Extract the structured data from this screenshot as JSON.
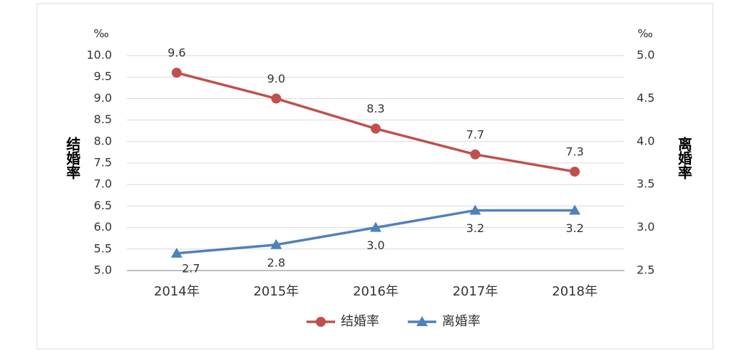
{
  "chart_data": {
    "type": "line",
    "y_unit": "‰",
    "y2_unit": "‰",
    "ylabel": "结婚率",
    "y2label": "离婚率",
    "categories": [
      "2014年",
      "2015年",
      "2016年",
      "2017年",
      "2018年"
    ],
    "series": [
      {
        "name": "结婚率",
        "color": "#c0504d",
        "marker": "circle",
        "values": [
          9.6,
          9.0,
          8.3,
          7.7,
          7.3
        ],
        "value_labels": [
          "9.6",
          "9.0",
          "8.3",
          "7.7",
          "7.3"
        ]
      },
      {
        "name": "离婚率",
        "color": "#4f81bd",
        "marker": "triangle",
        "axis": "y2",
        "values": [
          2.7,
          2.8,
          3.0,
          3.2,
          3.2
        ],
        "value_labels": [
          "2.7",
          "2.8",
          "3.0",
          "3.2",
          "3.2"
        ]
      }
    ],
    "ylim": [
      5,
      10
    ],
    "yticks": [
      {
        "value": 5,
        "label": "5.0"
      },
      5.5,
      {
        "value": 6,
        "label": "6.0"
      },
      6.5,
      {
        "value": 7,
        "label": "7.0"
      },
      7.5,
      {
        "value": 8,
        "label": "8.0"
      },
      8.5,
      {
        "value": 9,
        "label": "9.0"
      },
      9.5,
      {
        "value": 10,
        "label": "10.0"
      }
    ],
    "y2lim": [
      2.5,
      5
    ],
    "y2ticks": [
      2.5,
      {
        "value": 3,
        "label": "3.0"
      },
      3.5,
      {
        "value": 4,
        "label": "4.0"
      },
      4.5,
      {
        "value": 5,
        "label": "5.0"
      }
    ],
    "grid": true,
    "legend": "bottom"
  }
}
